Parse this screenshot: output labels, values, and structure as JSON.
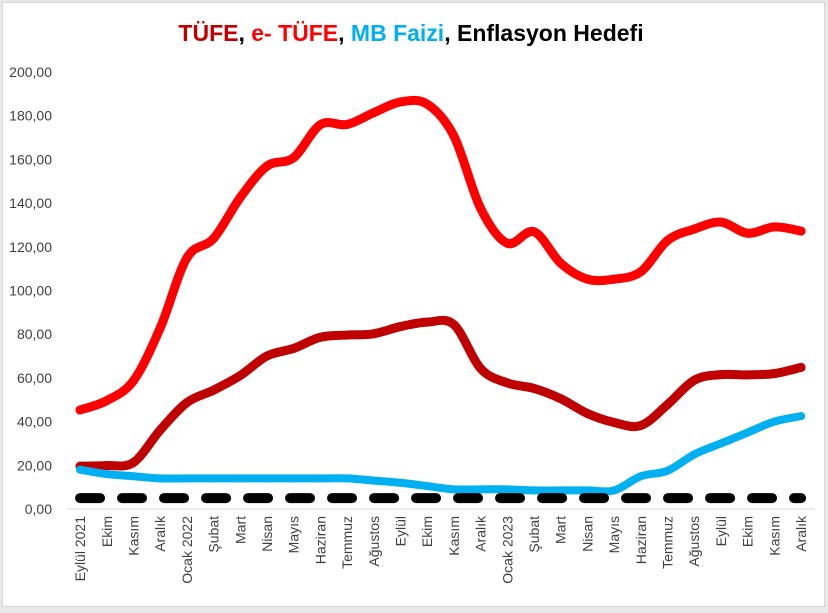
{
  "chart_data": {
    "type": "line",
    "title": "TÜFE, e- TÜFE, MB Faizi, Enflasyon Hedefi",
    "categories": [
      "Eylül 2021",
      "Ekim",
      "Kasım",
      "Aralık",
      "Ocak 2022",
      "Şubat",
      "Mart",
      "Nisan",
      "Mayıs",
      "Haziran",
      "Temmuz",
      "Ağustos",
      "Eylül",
      "Ekim",
      "Kasım",
      "Aralık",
      "Ocak 2023",
      "Şubat",
      "Mart",
      "Nisan",
      "Mayıs",
      "Haziran",
      "Temmuz",
      "Ağustos",
      "Eylül",
      "Ekim",
      "Kasım",
      "Aralık"
    ],
    "ylim": [
      0,
      200
    ],
    "yticks": [
      0,
      20,
      40,
      60,
      80,
      100,
      120,
      140,
      160,
      180,
      200
    ],
    "ytick_labels": [
      "0,00",
      "20,00",
      "40,00",
      "60,00",
      "80,00",
      "100,00",
      "120,00",
      "140,00",
      "160,00",
      "180,00",
      "200,00"
    ],
    "grid": false,
    "legend": "none",
    "smooth": true,
    "series": [
      {
        "name": "TÜFE",
        "color": "#c00000",
        "dashed": false,
        "values": [
          19.6,
          19.9,
          21.3,
          36.1,
          48.7,
          54.4,
          61.1,
          70.0,
          73.5,
          78.6,
          79.6,
          80.2,
          83.5,
          85.5,
          84.4,
          64.3,
          57.7,
          55.2,
          50.5,
          43.7,
          39.6,
          38.2,
          47.8,
          58.9,
          61.5,
          61.4,
          62.0,
          64.8
        ]
      },
      {
        "name": "e- TÜFE",
        "color": "#ff0000",
        "dashed": false,
        "values": [
          45.3,
          49.6,
          58.7,
          82.8,
          114.9,
          123.8,
          142.6,
          156.9,
          160.8,
          175.9,
          176.0,
          181.4,
          186.3,
          185.3,
          170.7,
          137.6,
          121.6,
          126.9,
          112.5,
          105.2,
          105.2,
          108.6,
          122.9,
          128.1,
          131.3,
          126.2,
          129.1,
          127.2
        ]
      },
      {
        "name": "MB Faizi",
        "color": "#00b0f0",
        "dashed": false,
        "values": [
          18,
          16,
          15,
          14,
          14,
          14,
          14,
          14,
          14,
          14,
          14,
          13,
          12,
          10.5,
          9,
          9,
          9,
          8.5,
          8.5,
          8.5,
          8.5,
          15,
          17.5,
          25,
          30,
          35,
          40,
          42.5
        ]
      },
      {
        "name": "Enflasyon Hedefi",
        "color": "#000000",
        "dashed": true,
        "values": [
          5,
          5,
          5,
          5,
          5,
          5,
          5,
          5,
          5,
          5,
          5,
          5,
          5,
          5,
          5,
          5,
          5,
          5,
          5,
          5,
          5,
          5,
          5,
          5,
          5,
          5,
          5,
          5
        ]
      }
    ]
  }
}
